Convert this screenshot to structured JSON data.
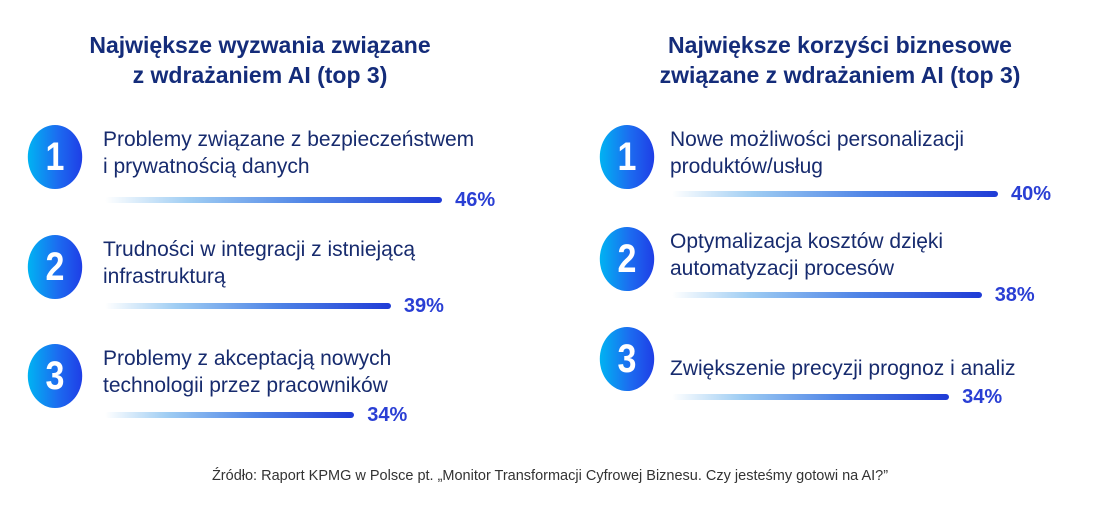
{
  "chart_data": [
    {
      "type": "bar",
      "title": "Największe wyzwania związane z wdrażaniem AI (top 3)",
      "title_lines": [
        "Największe wyzwania związane",
        "z wdrażaniem AI (top 3)"
      ],
      "categories": [
        [
          "Problemy związane z bezpieczeństwem",
          "i prywatnością danych"
        ],
        [
          "Trudności w integracji z istniejącą",
          "infrastrukturą"
        ],
        [
          "Problemy z akceptacją nowych",
          "technologii przez pracowników"
        ]
      ],
      "ranks": [
        "1",
        "2",
        "3"
      ],
      "values": [
        46,
        39,
        34
      ],
      "value_labels": [
        "46%",
        "39%",
        "34%"
      ],
      "orientation": "horizontal"
    },
    {
      "type": "bar",
      "title": "Największe korzyści biznesowe związane z wdrażaniem AI (top 3)",
      "title_lines": [
        "Największe korzyści biznesowe",
        "związane z wdrażaniem AI (top 3)"
      ],
      "categories": [
        [
          "Nowe możliwości personalizacji",
          "produktów/usług"
        ],
        [
          "Optymalizacja kosztów dzięki",
          "automatyzacji procesów"
        ],
        [
          "Zwiększenie precyzji prognoz i analiz"
        ]
      ],
      "ranks": [
        "1",
        "2",
        "3"
      ],
      "values": [
        40,
        38,
        34
      ],
      "value_labels": [
        "40%",
        "38%",
        "34%"
      ],
      "orientation": "horizontal"
    }
  ],
  "colors": {
    "title": "#142c7a",
    "text": "#172b6e",
    "value": "#2a3fd4",
    "circle_start": "#00b3f2",
    "circle_end": "#1f3ee6"
  },
  "source": "Źródło: Raport KPMG w Polsce pt. „Monitor Transformacji Cyfrowej Biznesu. Czy jesteśmy gotowi na AI?”"
}
